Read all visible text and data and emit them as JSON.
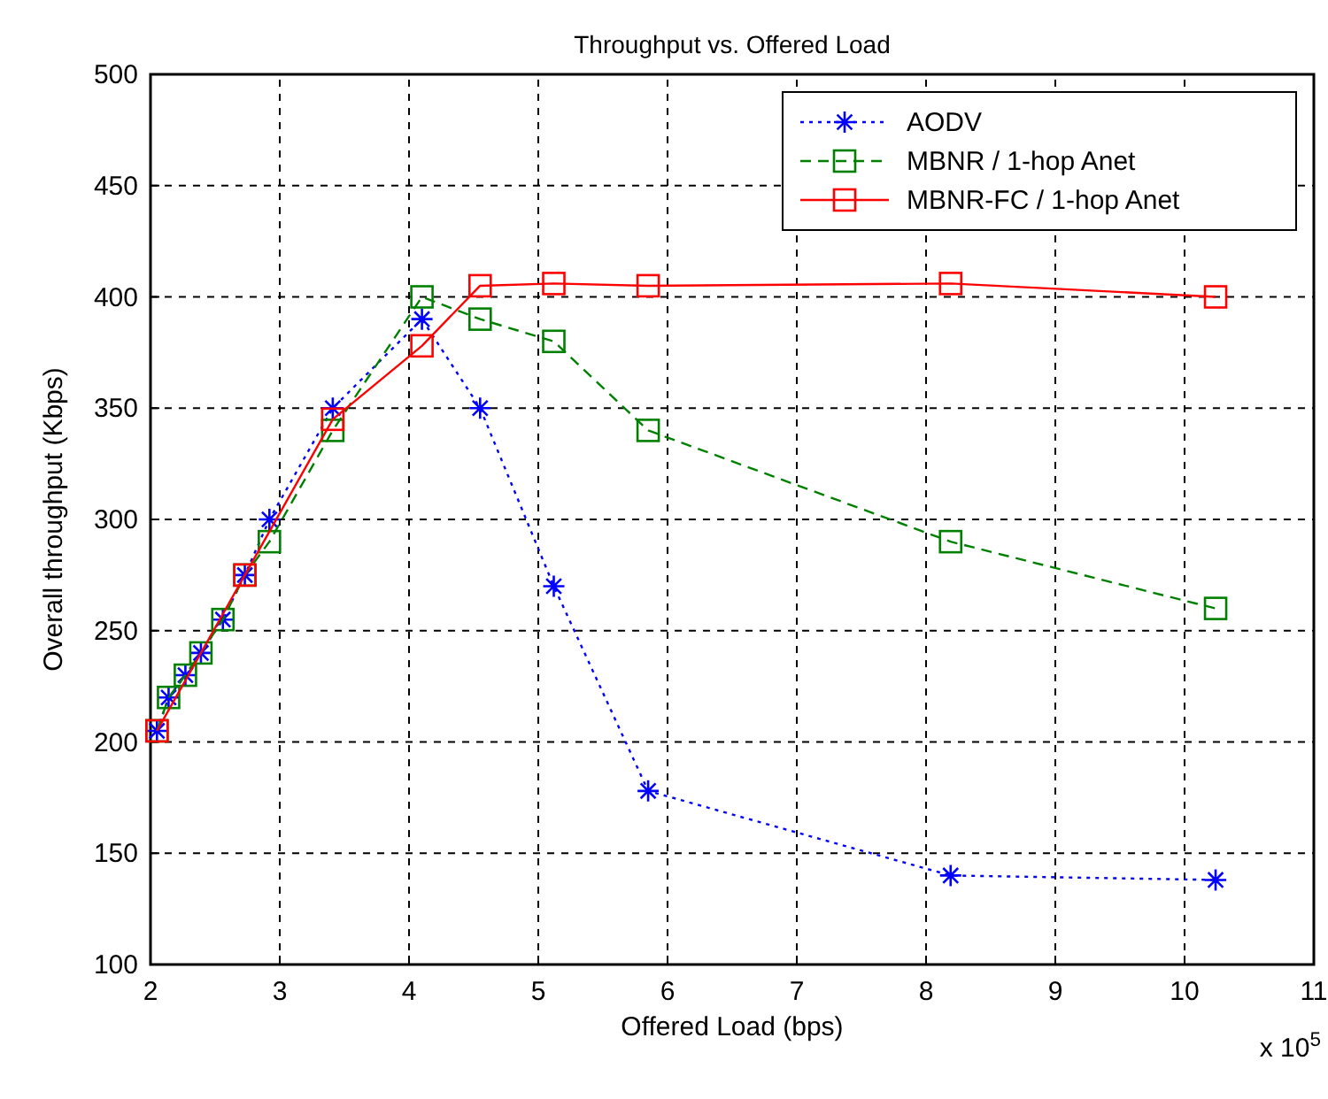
{
  "chart_data": {
    "type": "line",
    "title": "Throughput vs. Offered Load",
    "xlabel": "Offered Load (bps)",
    "ylabel": "Overall throughput (Kbps)",
    "x": [
      2.05,
      2.14,
      2.27,
      2.39,
      2.56,
      2.73,
      2.92,
      3.41,
      4.1,
      4.55,
      5.12,
      5.85,
      8.19,
      10.24
    ],
    "series": [
      {
        "name": "AODV",
        "color": "#0000ff",
        "marker": "cross",
        "line_style": "dotted",
        "values": [
          205,
          220,
          230,
          240,
          255,
          275,
          300,
          350,
          390,
          350,
          270,
          178,
          140,
          138
        ]
      },
      {
        "name": "MBNR / 1-hop Anet",
        "color": "#008000",
        "marker": "square",
        "line_style": "dashed",
        "values": [
          205,
          220,
          230,
          240,
          255,
          275,
          290,
          340,
          400,
          390,
          380,
          340,
          290,
          260
        ]
      },
      {
        "name": "MBNR-FC / 1-hop Anet",
        "color": "#ff0000",
        "marker": "square",
        "line_style": "solid",
        "x": [
          2.05,
          2.73,
          3.41,
          4.1,
          4.55,
          5.12,
          5.85,
          8.19,
          10.24
        ],
        "values": [
          205,
          275,
          345,
          378,
          405,
          406,
          405,
          406,
          400
        ]
      }
    ],
    "xlim": [
      2,
      11
    ],
    "xticks": [
      2,
      3,
      4,
      5,
      6,
      7,
      8,
      9,
      10,
      11
    ],
    "ylim": [
      100,
      500
    ],
    "yticks": [
      100,
      150,
      200,
      250,
      300,
      350,
      400,
      450,
      500
    ],
    "grid": true,
    "legend": "top right",
    "annotations": [
      "x 10$^{5}$"
    ]
  }
}
